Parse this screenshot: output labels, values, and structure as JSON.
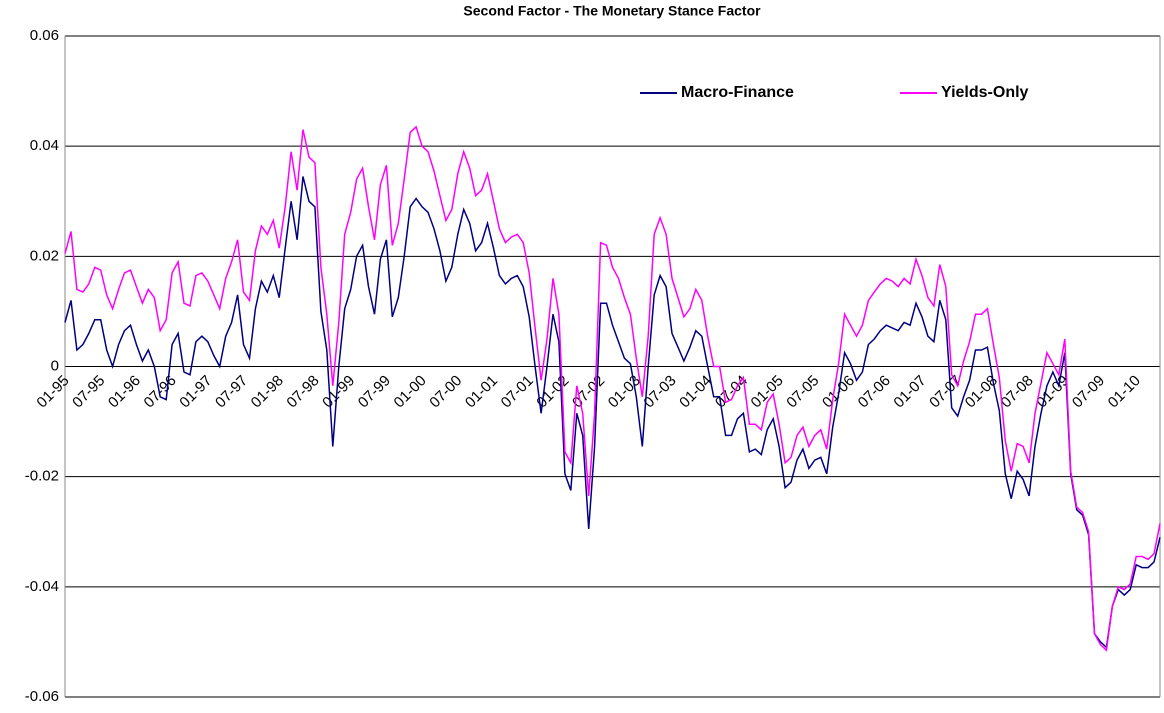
{
  "chart_data": {
    "type": "line",
    "title": "Second Factor - The Monetary Stance Factor",
    "categories": [
      "01-95",
      null,
      null,
      null,
      null,
      null,
      "07-95",
      null,
      null,
      null,
      null,
      null,
      "01-96",
      null,
      null,
      null,
      null,
      null,
      "07-96",
      null,
      null,
      null,
      null,
      null,
      "01-97",
      null,
      null,
      null,
      null,
      null,
      "07-97",
      null,
      null,
      null,
      null,
      null,
      "01-98",
      null,
      null,
      null,
      null,
      null,
      "07-98",
      null,
      null,
      null,
      null,
      null,
      "01-99",
      null,
      null,
      null,
      null,
      null,
      "07-99",
      null,
      null,
      null,
      null,
      null,
      "01-00",
      null,
      null,
      null,
      null,
      null,
      "07-00",
      null,
      null,
      null,
      null,
      null,
      "01-01",
      null,
      null,
      null,
      null,
      null,
      "07-01",
      null,
      null,
      null,
      null,
      null,
      "01-02",
      null,
      null,
      null,
      null,
      null,
      "07-02",
      null,
      null,
      null,
      null,
      null,
      "01-03",
      null,
      null,
      null,
      null,
      null,
      "07-03",
      null,
      null,
      null,
      null,
      null,
      "01-04",
      null,
      null,
      null,
      null,
      null,
      "07-04",
      null,
      null,
      null,
      null,
      null,
      "01-05",
      null,
      null,
      null,
      null,
      null,
      "07-05",
      null,
      null,
      null,
      null,
      null,
      "01-06",
      null,
      null,
      null,
      null,
      null,
      "07-06",
      null,
      null,
      null,
      null,
      null,
      "01-07",
      null,
      null,
      null,
      null,
      null,
      "07-07",
      null,
      null,
      null,
      null,
      null,
      "01-08",
      null,
      null,
      null,
      null,
      null,
      "07-08",
      null,
      null,
      null,
      null,
      null,
      "01-09",
      null,
      null,
      null,
      null,
      null,
      "07-09",
      null,
      null,
      null,
      null,
      null,
      "01-10",
      null,
      null,
      null,
      null
    ],
    "series": [
      {
        "name": "Macro-Finance",
        "color": "#000080",
        "values": [
          0.008,
          0.012,
          0.003,
          0.004,
          0.006,
          0.0085,
          0.0085,
          0.003,
          0.0,
          0.004,
          0.0065,
          0.0075,
          0.004,
          0.001,
          0.003,
          0.0,
          -0.0055,
          -0.006,
          0.004,
          0.006,
          -0.001,
          -0.0015,
          0.0045,
          0.0055,
          0.0045,
          0.002,
          0.0,
          0.0055,
          0.008,
          0.013,
          0.004,
          0.0015,
          0.0105,
          0.0155,
          0.0135,
          0.0165,
          0.0125,
          0.0215,
          0.03,
          0.023,
          0.0345,
          0.03,
          0.029,
          0.01,
          0.003,
          -0.0145,
          0.0,
          0.0105,
          0.014,
          0.02,
          0.022,
          0.0145,
          0.0095,
          0.0195,
          0.023,
          0.009,
          0.0125,
          0.02,
          0.029,
          0.0305,
          0.029,
          0.028,
          0.025,
          0.021,
          0.0155,
          0.018,
          0.024,
          0.0285,
          0.026,
          0.021,
          0.0225,
          0.026,
          0.0215,
          0.0165,
          0.015,
          0.016,
          0.0165,
          0.0145,
          0.009,
          0.0,
          -0.0085,
          0.0,
          0.0095,
          0.0045,
          -0.0195,
          -0.0225,
          -0.0085,
          -0.0125,
          -0.0295,
          -0.0145,
          0.0115,
          0.0115,
          0.0075,
          0.0045,
          0.0015,
          0.0005,
          -0.0055,
          -0.0145,
          0.0,
          0.013,
          0.0165,
          0.0145,
          0.006,
          0.0035,
          0.001,
          0.0035,
          0.0065,
          0.0055,
          0.0,
          -0.0055,
          -0.0055,
          -0.0125,
          -0.0125,
          -0.0095,
          -0.0085,
          -0.0155,
          -0.015,
          -0.016,
          -0.0115,
          -0.0095,
          -0.0145,
          -0.022,
          -0.021,
          -0.017,
          -0.015,
          -0.0185,
          -0.017,
          -0.0165,
          -0.0195,
          -0.011,
          -0.005,
          0.0025,
          0.0005,
          -0.0025,
          -0.001,
          0.004,
          0.005,
          0.0065,
          0.0075,
          0.007,
          0.0065,
          0.008,
          0.0075,
          0.0115,
          0.009,
          0.0055,
          0.0045,
          0.012,
          0.0085,
          -0.0075,
          -0.009,
          -0.0055,
          -0.0025,
          0.003,
          0.003,
          0.0035,
          -0.003,
          -0.008,
          -0.0195,
          -0.024,
          -0.019,
          -0.0205,
          -0.0235,
          -0.0145,
          -0.0085,
          -0.0035,
          -0.001,
          -0.0035,
          0.0025,
          -0.0195,
          -0.026,
          -0.027,
          -0.0305,
          -0.0485,
          -0.05,
          -0.051,
          -0.0435,
          -0.0405,
          -0.0415,
          -0.0405,
          -0.036,
          -0.0365,
          -0.0365,
          -0.0355,
          -0.031
        ]
      },
      {
        "name": "Yields-Only",
        "color": "#ff00ff",
        "values": [
          0.0205,
          0.0245,
          0.014,
          0.0135,
          0.015,
          0.018,
          0.0175,
          0.013,
          0.0105,
          0.014,
          0.017,
          0.0175,
          0.0145,
          0.0115,
          0.014,
          0.0125,
          0.0065,
          0.0085,
          0.017,
          0.019,
          0.0115,
          0.011,
          0.0165,
          0.017,
          0.0155,
          0.013,
          0.0105,
          0.016,
          0.019,
          0.023,
          0.0135,
          0.012,
          0.021,
          0.0255,
          0.024,
          0.0265,
          0.0215,
          0.029,
          0.039,
          0.032,
          0.043,
          0.038,
          0.037,
          0.018,
          0.0095,
          -0.0035,
          0.008,
          0.024,
          0.028,
          0.034,
          0.036,
          0.029,
          0.023,
          0.033,
          0.0365,
          0.022,
          0.026,
          0.034,
          0.0425,
          0.0435,
          0.04,
          0.039,
          0.0355,
          0.031,
          0.0265,
          0.0285,
          0.035,
          0.039,
          0.036,
          0.031,
          0.032,
          0.035,
          0.03,
          0.025,
          0.0225,
          0.0235,
          0.024,
          0.0225,
          0.017,
          0.007,
          -0.0025,
          0.005,
          0.016,
          0.0095,
          -0.0155,
          -0.0175,
          -0.0035,
          -0.0085,
          -0.0235,
          -0.0085,
          0.0225,
          0.022,
          0.018,
          0.016,
          0.0125,
          0.0095,
          0.0015,
          -0.0055,
          0.0055,
          0.024,
          0.027,
          0.024,
          0.016,
          0.0125,
          0.009,
          0.0105,
          0.014,
          0.012,
          0.0055,
          0.0,
          0.0,
          -0.0065,
          -0.006,
          -0.0035,
          -0.002,
          -0.0105,
          -0.0105,
          -0.0115,
          -0.0065,
          -0.005,
          -0.0105,
          -0.0175,
          -0.0165,
          -0.0125,
          -0.011,
          -0.0145,
          -0.0125,
          -0.0115,
          -0.015,
          -0.006,
          0.0005,
          0.0095,
          0.0075,
          0.0055,
          0.0075,
          0.012,
          0.0135,
          0.015,
          0.016,
          0.0155,
          0.0145,
          0.016,
          0.015,
          0.0195,
          0.0165,
          0.0125,
          0.011,
          0.0185,
          0.0145,
          -0.0015,
          -0.0035,
          0.001,
          0.0045,
          0.0095,
          0.0095,
          0.0105,
          0.004,
          -0.002,
          -0.0135,
          -0.019,
          -0.014,
          -0.0145,
          -0.0175,
          -0.0085,
          -0.003,
          0.0025,
          0.0005,
          -0.0015,
          0.005,
          -0.019,
          -0.0255,
          -0.0265,
          -0.03,
          -0.0485,
          -0.0505,
          -0.0515,
          -0.0435,
          -0.04,
          -0.0405,
          -0.0395,
          -0.0345,
          -0.0345,
          -0.035,
          -0.034,
          -0.0285
        ]
      }
    ],
    "ylim": [
      -0.06,
      0.06
    ],
    "yticks": [
      -0.06,
      -0.04,
      -0.02,
      0,
      0.02,
      0.04,
      0.06
    ],
    "grid": true
  }
}
